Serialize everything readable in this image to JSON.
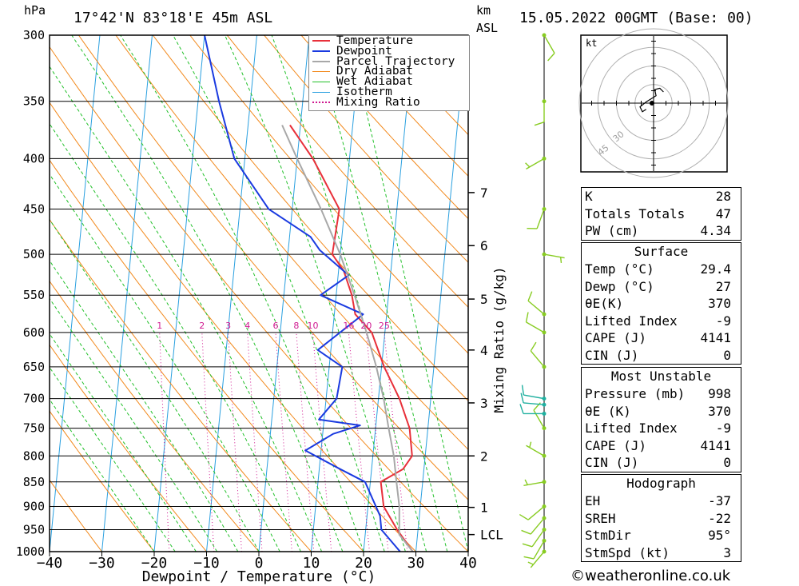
{
  "header": {
    "pressure_unit": "hPa",
    "location": "17°42'N  83°18'E  45m  ASL",
    "height_unit": "km",
    "height_unit2": "ASL",
    "datetime": "15.05.2022  00GMT  (Base: 00)"
  },
  "colors": {
    "temperature": "#e8303a",
    "dewpoint": "#1a3ae0",
    "parcel": "#a8a8a8",
    "dry_adiabat": "#f28a1e",
    "wet_adiabat": "#22c02a",
    "isotherm": "#2aa0e0",
    "mixing_ratio": "#d01890",
    "wind_barb": "#88cc22",
    "wind_barb_alt": "#20b0a0"
  },
  "legend": [
    {
      "label": "Temperature",
      "style": "temperature"
    },
    {
      "label": "Dewpoint",
      "style": "dewpoint"
    },
    {
      "label": "Parcel Trajectory",
      "style": "parcel"
    },
    {
      "label": "Dry Adiabat",
      "style": "dry_adiabat"
    },
    {
      "label": "Wet Adiabat",
      "style": "wet_adiabat"
    },
    {
      "label": "Isotherm",
      "style": "isotherm"
    },
    {
      "label": "Mixing Ratio",
      "style": "mixing_ratio"
    }
  ],
  "chart_data": {
    "type": "line",
    "title": "",
    "xlabel": "Dewpoint / Temperature (°C)",
    "ylabel": "hPa",
    "secondary_ylabel": "Mixing Ratio (g/kg)",
    "xlim": [
      -40,
      40
    ],
    "ylim": [
      1000,
      300
    ],
    "skew_per_log_pressure": 52.3,
    "pressure_ticks": [
      300,
      350,
      400,
      450,
      500,
      550,
      600,
      650,
      700,
      750,
      800,
      850,
      900,
      950,
      1000
    ],
    "temperature_ticks": [
      -40,
      -30,
      -20,
      -10,
      0,
      10,
      20,
      30,
      40
    ],
    "height_ticks_km": [
      {
        "label": "1",
        "p": 902
      },
      {
        "label": "2",
        "p": 800
      },
      {
        "label": "3",
        "p": 707
      },
      {
        "label": "4",
        "p": 625
      },
      {
        "label": "5",
        "p": 555
      },
      {
        "label": "6",
        "p": 490
      },
      {
        "label": "7",
        "p": 433
      },
      {
        "label": "LCL",
        "p": 961
      }
    ],
    "mixing_ratio_labels": [
      "1",
      "2",
      "3",
      "4",
      "6",
      "8",
      "10",
      "16",
      "20",
      "25"
    ],
    "mixing_ratio_values": [
      1,
      2,
      3,
      4,
      6,
      8,
      10,
      16,
      20,
      25
    ],
    "series": [
      {
        "name": "Temperature",
        "style": "temperature",
        "points": [
          [
            1000,
            29.4
          ],
          [
            950,
            26
          ],
          [
            900,
            23
          ],
          [
            850,
            22
          ],
          [
            825,
            26
          ],
          [
            800,
            27.5
          ],
          [
            750,
            26.5
          ],
          [
            700,
            24
          ],
          [
            650,
            20.5
          ],
          [
            600,
            17.5
          ],
          [
            575,
            14
          ],
          [
            550,
            13
          ],
          [
            520,
            11
          ],
          [
            500,
            8.5
          ],
          [
            450,
            9
          ],
          [
            400,
            3
          ],
          [
            370,
            -2
          ]
        ]
      },
      {
        "name": "Dewpoint",
        "style": "dewpoint",
        "points": [
          [
            1000,
            27
          ],
          [
            950,
            23
          ],
          [
            920,
            22.5
          ],
          [
            850,
            19
          ],
          [
            825,
            14
          ],
          [
            790,
            7
          ],
          [
            760,
            12
          ],
          [
            745,
            17
          ],
          [
            735,
            9
          ],
          [
            700,
            12
          ],
          [
            650,
            12.5
          ],
          [
            625,
            7.5
          ],
          [
            575,
            15.5
          ],
          [
            550,
            7
          ],
          [
            525,
            12
          ],
          [
            495,
            6
          ],
          [
            480,
            4
          ],
          [
            450,
            -4.5
          ],
          [
            400,
            -12
          ],
          [
            350,
            -16
          ],
          [
            300,
            -20
          ]
        ]
      },
      {
        "name": "Parcel Trajectory",
        "style": "parcel",
        "points": [
          [
            1000,
            29.4
          ],
          [
            961,
            26.5
          ],
          [
            900,
            26
          ],
          [
            850,
            25
          ],
          [
            800,
            24
          ],
          [
            750,
            22.5
          ],
          [
            700,
            21
          ],
          [
            650,
            19
          ],
          [
            600,
            16.5
          ],
          [
            550,
            13.5
          ],
          [
            500,
            10
          ],
          [
            450,
            5.5
          ],
          [
            400,
            0
          ],
          [
            370,
            -3.5
          ]
        ]
      }
    ],
    "wind_profile": [
      {
        "p": 1000,
        "dir": 220,
        "kt": 5,
        "alt": false
      },
      {
        "p": 975,
        "dir": 210,
        "kt": 10,
        "alt": false
      },
      {
        "p": 950,
        "dir": 215,
        "kt": 10,
        "alt": false
      },
      {
        "p": 925,
        "dir": 220,
        "kt": 10,
        "alt": false
      },
      {
        "p": 900,
        "dir": 230,
        "kt": 10,
        "alt": false
      },
      {
        "p": 850,
        "dir": 260,
        "kt": 5,
        "alt": false
      },
      {
        "p": 800,
        "dir": 300,
        "kt": 5,
        "alt": false
      },
      {
        "p": 750,
        "dir": 330,
        "kt": 10,
        "alt": false
      },
      {
        "p": 725,
        "dir": 270,
        "kt": 10,
        "alt": true
      },
      {
        "p": 710,
        "dir": 275,
        "kt": 10,
        "alt": true
      },
      {
        "p": 700,
        "dir": 280,
        "kt": 10,
        "alt": true
      },
      {
        "p": 650,
        "dir": 320,
        "kt": 10,
        "alt": false
      },
      {
        "p": 600,
        "dir": 300,
        "kt": 10,
        "alt": false
      },
      {
        "p": 575,
        "dir": 310,
        "kt": 10,
        "alt": false
      },
      {
        "p": 500,
        "dir": 100,
        "kt": 5,
        "alt": false
      },
      {
        "p": 450,
        "dir": 200,
        "kt": 10,
        "alt": false
      },
      {
        "p": 400,
        "dir": 240,
        "kt": 5,
        "alt": false
      },
      {
        "p": 350,
        "dir": 180,
        "kt": 10,
        "alt": false
      },
      {
        "p": 300,
        "dir": 150,
        "kt": 10,
        "alt": false
      }
    ],
    "hodograph": {
      "unit_label": "kt",
      "ring_labels": [
        "30",
        "45"
      ],
      "trace_uv": [
        [
          -6,
          -5
        ],
        [
          -9,
          -7
        ],
        [
          -11,
          -3
        ],
        [
          -6,
          1
        ],
        [
          2,
          6
        ],
        [
          1,
          11
        ],
        [
          5,
          12
        ],
        [
          8,
          9
        ]
      ]
    }
  },
  "indices": [
    {
      "label": "K",
      "value": "28"
    },
    {
      "label": "Totals Totals",
      "value": "47"
    },
    {
      "label": "PW (cm)",
      "value": "4.34"
    }
  ],
  "surface": {
    "title": "Surface",
    "rows": [
      {
        "label": "Temp (°C)",
        "value": "29.4"
      },
      {
        "label": "Dewp (°C)",
        "value": "27"
      },
      {
        "label": "θE(K)",
        "value": "370"
      },
      {
        "label": "Lifted Index",
        "value": "-9"
      },
      {
        "label": "CAPE (J)",
        "value": "4141"
      },
      {
        "label": "CIN (J)",
        "value": "0"
      }
    ]
  },
  "most_unstable": {
    "title": "Most Unstable",
    "rows": [
      {
        "label": "Pressure (mb)",
        "value": "998"
      },
      {
        "label": "θE (K)",
        "value": "370"
      },
      {
        "label": "Lifted Index",
        "value": "-9"
      },
      {
        "label": "CAPE (J)",
        "value": "4141"
      },
      {
        "label": "CIN (J)",
        "value": "0"
      }
    ]
  },
  "hodograph_table": {
    "title": "Hodograph",
    "rows": [
      {
        "label": "EH",
        "value": "-37"
      },
      {
        "label": "SREH",
        "value": "-22"
      },
      {
        "label": "StmDir",
        "value": "95°"
      },
      {
        "label": "StmSpd (kt)",
        "value": "3"
      }
    ]
  },
  "footer": "©weatheronline.co.uk"
}
